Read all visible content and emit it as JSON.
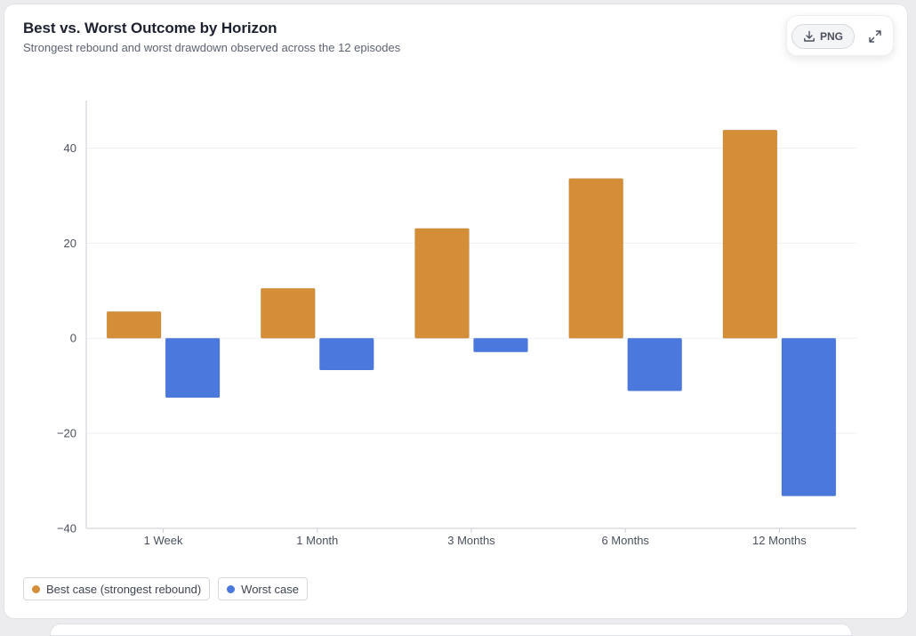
{
  "header": {
    "title": "Best vs. Worst Outcome by Horizon",
    "subtitle": "Strongest rebound and worst drawdown observed across the 12 episodes"
  },
  "toolbar": {
    "png_label": "PNG",
    "download_icon": "download-icon",
    "expand_icon": "expand-icon"
  },
  "colors": {
    "best": "#d48e38",
    "worst": "#4a78dc",
    "grid": "#eeeff2",
    "axis": "#c8cbd2",
    "tick_text": "#4a505e"
  },
  "chart_data": {
    "type": "bar",
    "categories": [
      "1 Week",
      "1 Month",
      "3 Months",
      "6 Months",
      "12 Months"
    ],
    "series": [
      {
        "name": "Best case (strongest rebound)",
        "values": [
          5.6,
          10.5,
          23.1,
          33.6,
          43.8
        ]
      },
      {
        "name": "Worst case",
        "values": [
          -12.5,
          -6.7,
          -2.9,
          -11.1,
          -33.2
        ]
      }
    ],
    "ylim": [
      -40,
      50
    ],
    "yticks": [
      -40,
      -20,
      0,
      20,
      40
    ],
    "ytick_labels": [
      "−40",
      "−20",
      "0",
      "20",
      "40"
    ],
    "grid": true,
    "legend": "bottom-left"
  }
}
